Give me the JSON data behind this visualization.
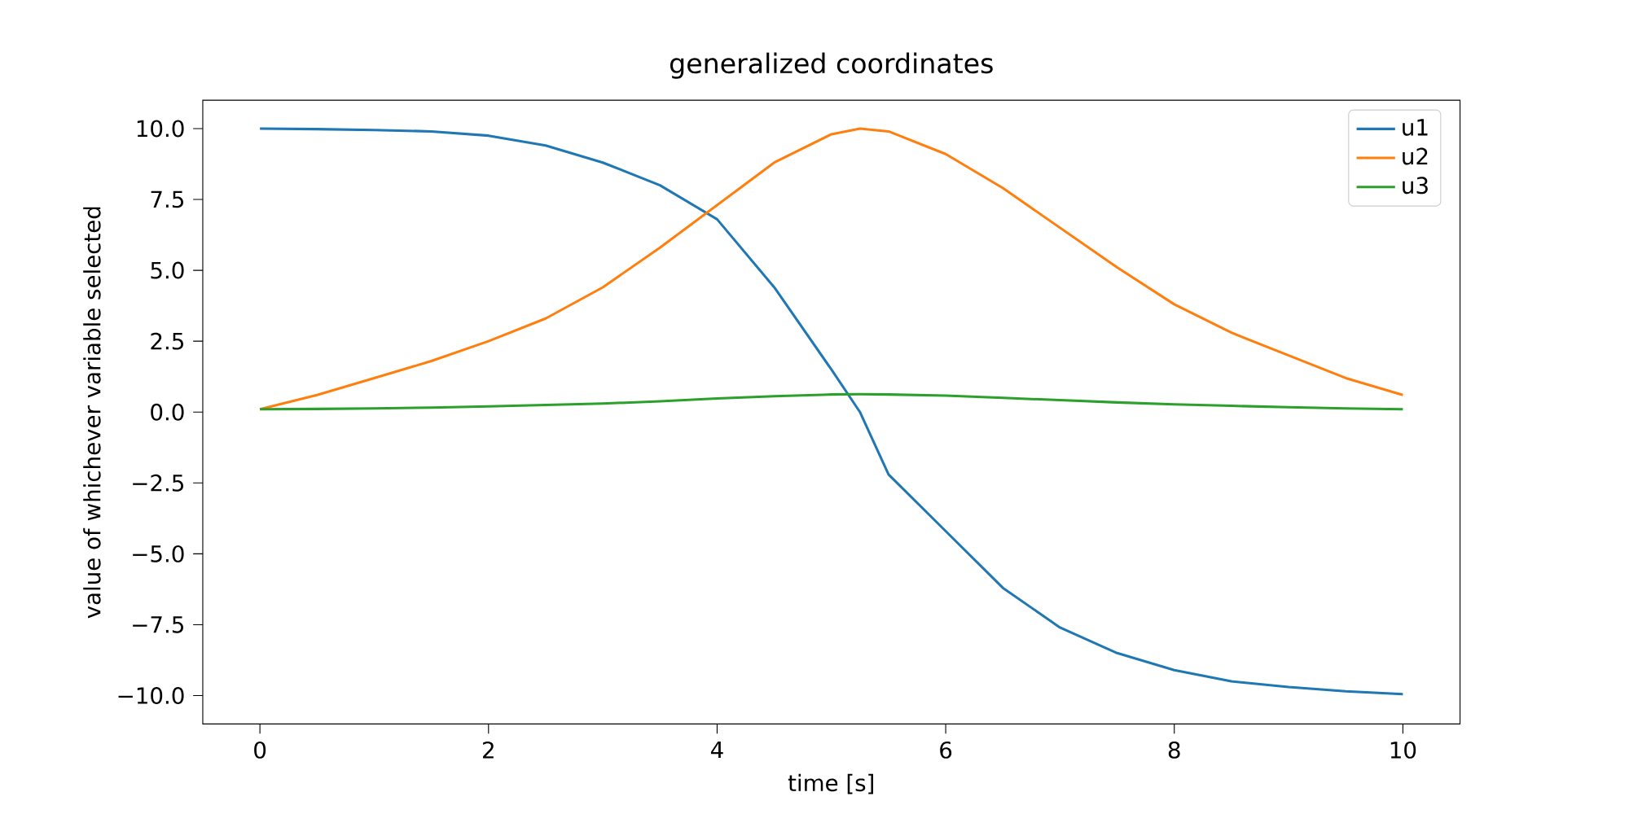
{
  "chart_data": {
    "type": "line",
    "title": "generalized coordinates",
    "xlabel": "time [s]",
    "ylabel": "value of whichever variable selected",
    "x": [
      0,
      0.5,
      1,
      1.5,
      2,
      2.5,
      3,
      3.5,
      4,
      4.5,
      5,
      5.25,
      5.5,
      6,
      6.5,
      7,
      7.5,
      8,
      8.5,
      9,
      9.5,
      10
    ],
    "series": [
      {
        "name": "u1",
        "color": "#1f77b4",
        "values": [
          10,
          9.98,
          9.95,
          9.9,
          9.75,
          9.4,
          8.8,
          8.0,
          6.8,
          4.4,
          1.5,
          0.0,
          -2.2,
          -4.2,
          -6.2,
          -7.6,
          -8.5,
          -9.1,
          -9.5,
          -9.7,
          -9.85,
          -9.95
        ]
      },
      {
        "name": "u2",
        "color": "#ff7f0e",
        "values": [
          0.1,
          0.6,
          1.2,
          1.8,
          2.5,
          3.3,
          4.4,
          5.8,
          7.3,
          8.8,
          9.8,
          10.0,
          9.9,
          9.1,
          7.9,
          6.5,
          5.1,
          3.8,
          2.8,
          2.0,
          1.2,
          0.6
        ]
      },
      {
        "name": "u3",
        "color": "#2ca02c",
        "values": [
          0.1,
          0.11,
          0.13,
          0.16,
          0.2,
          0.25,
          0.3,
          0.38,
          0.48,
          0.56,
          0.62,
          0.63,
          0.62,
          0.58,
          0.5,
          0.42,
          0.34,
          0.27,
          0.22,
          0.17,
          0.13,
          0.1
        ]
      }
    ],
    "xlim": [
      -0.5,
      10.5
    ],
    "ylim": [
      -11,
      11
    ],
    "xticks": [
      0,
      2,
      4,
      6,
      8,
      10
    ],
    "yticks": [
      {
        "value": -10,
        "label": "−10.0"
      },
      {
        "value": -7.5,
        "label": "−7.5"
      },
      {
        "value": -5,
        "label": "−5.0"
      },
      {
        "value": -2.5,
        "label": "−2.5"
      },
      {
        "value": 0,
        "label": "0.0"
      },
      {
        "value": 2.5,
        "label": "2.5"
      },
      {
        "value": 5,
        "label": "5.0"
      },
      {
        "value": 7.5,
        "label": "7.5"
      },
      {
        "value": 10,
        "label": "10.0"
      }
    ],
    "legend": "top right",
    "grid": false,
    "marker": "none",
    "line_style": "solid"
  }
}
